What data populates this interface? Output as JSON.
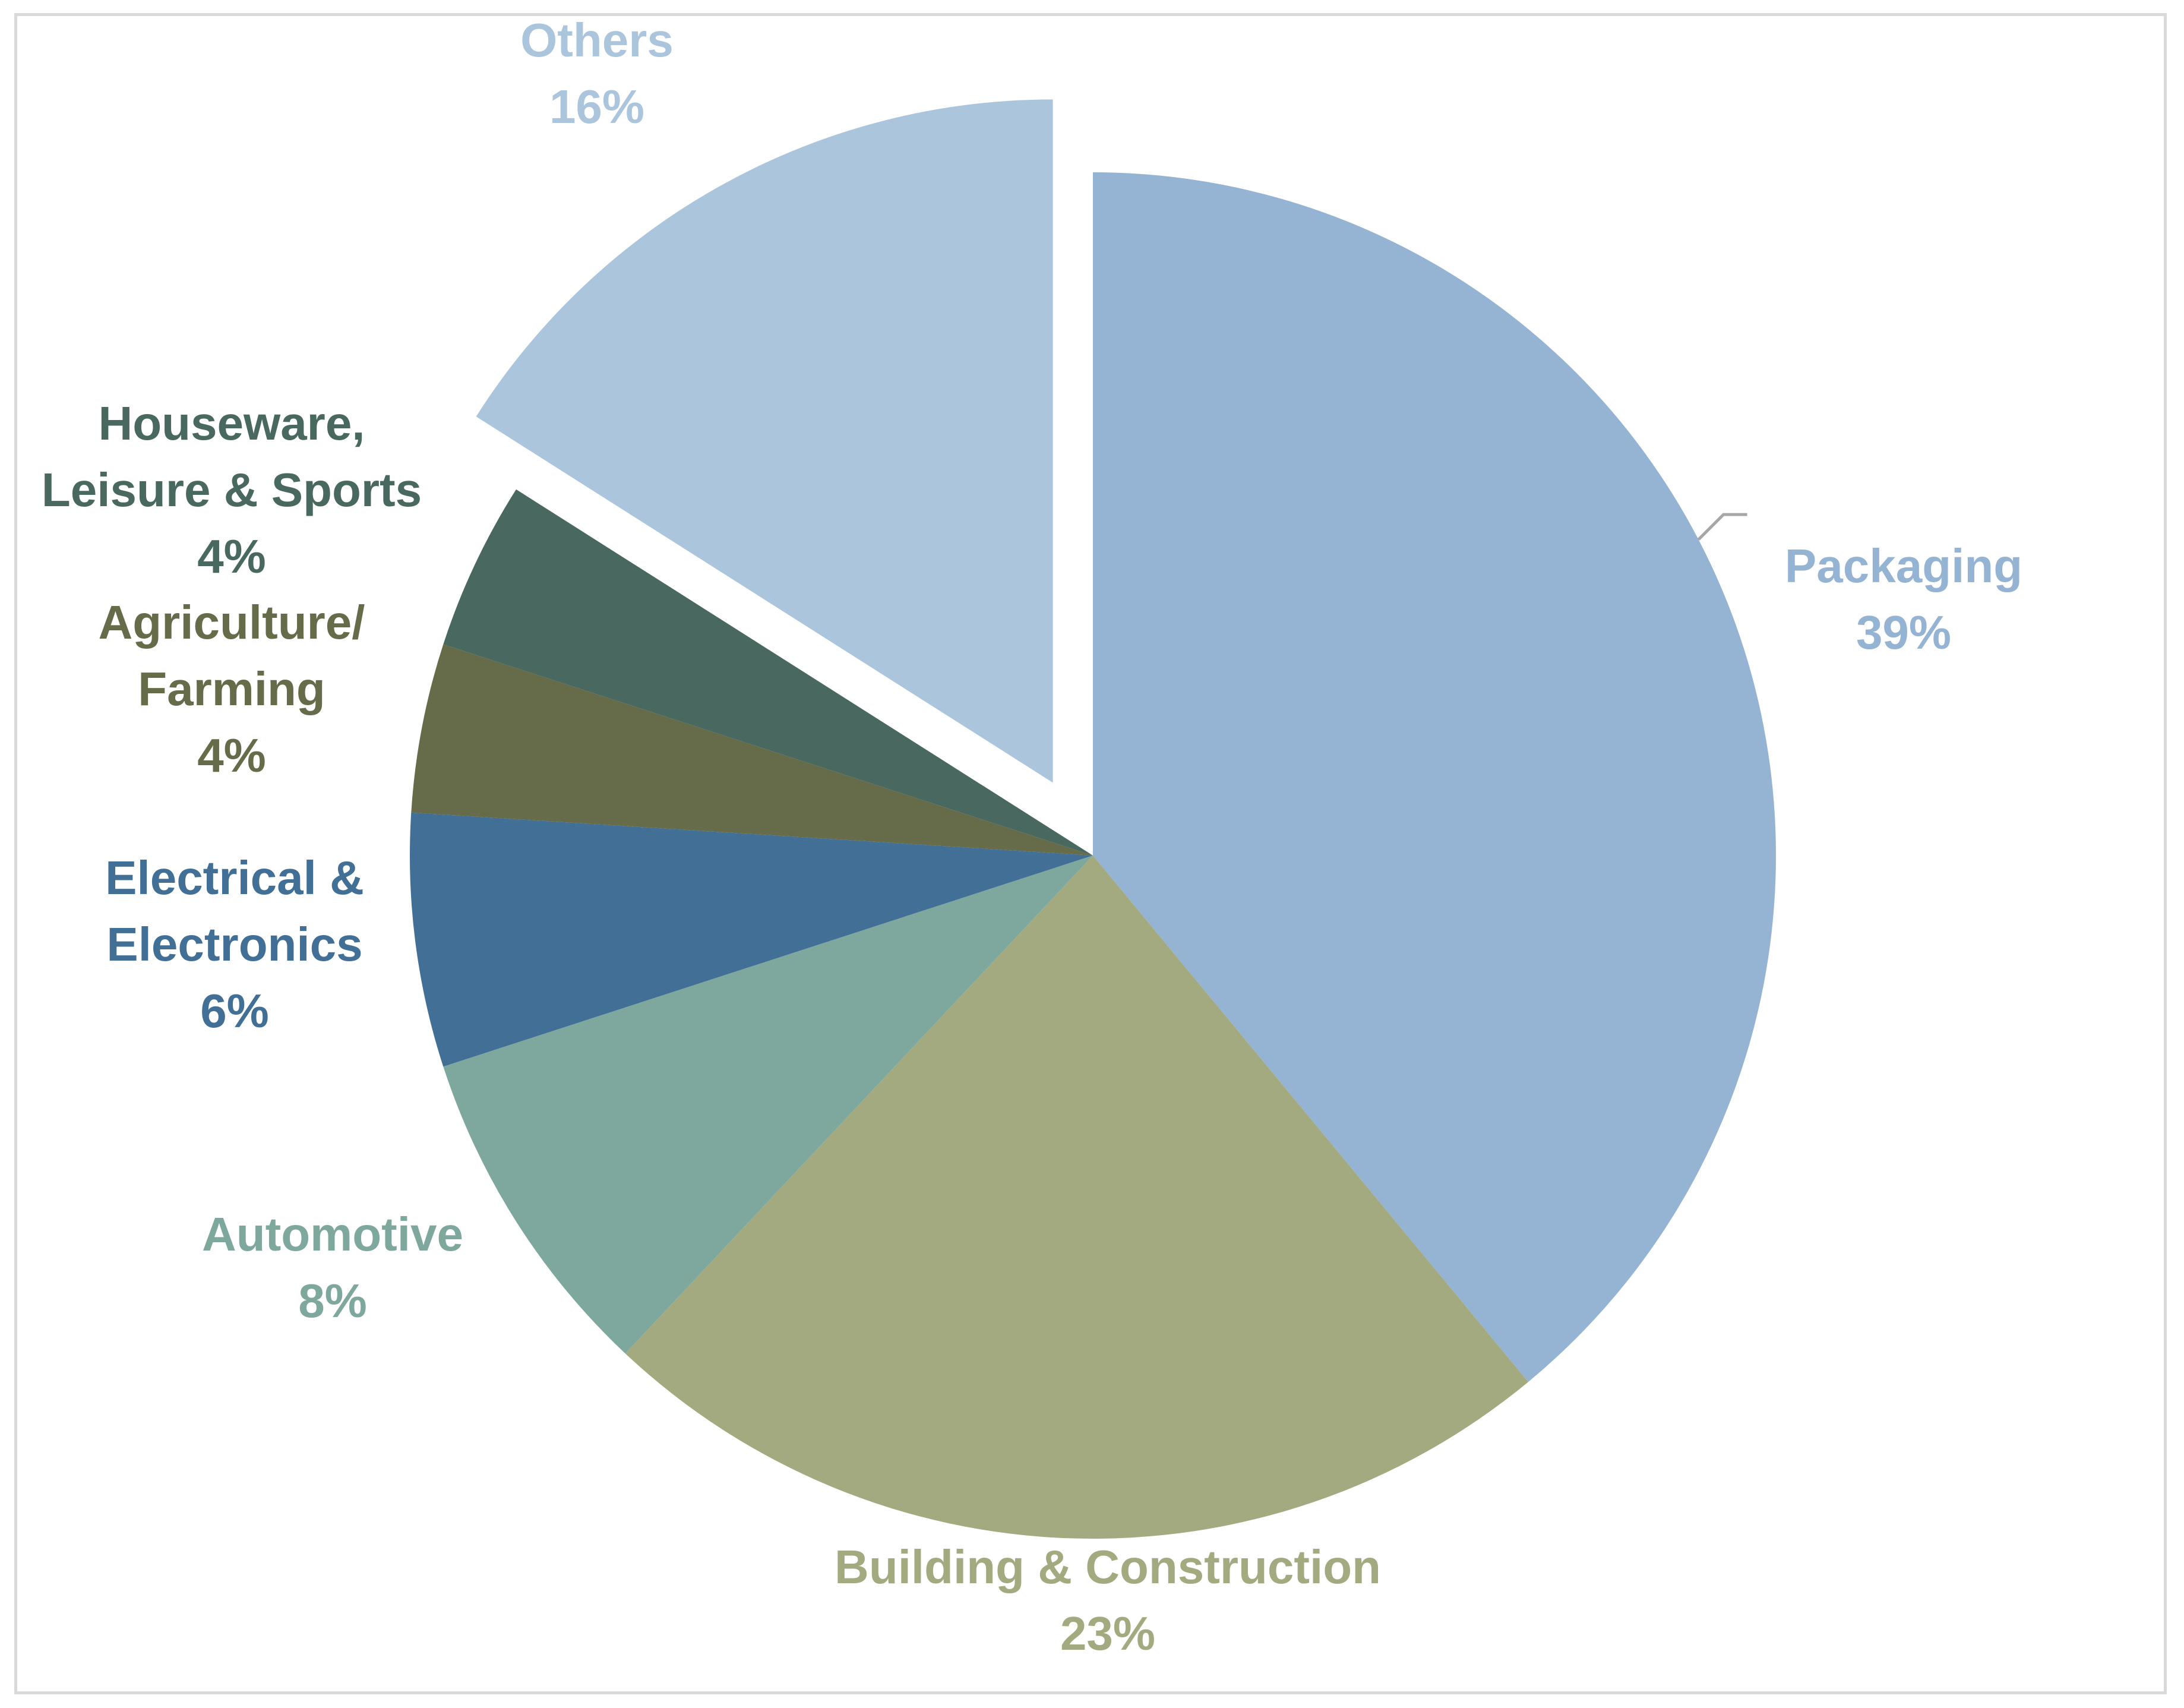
{
  "chart_data": {
    "type": "pie",
    "title": "",
    "slices": [
      {
        "name": "Packaging",
        "value": 39,
        "percent_label": "39%",
        "color": "#95b3d2",
        "label_lines": [
          "Packaging",
          "39%"
        ],
        "label_color": "#95b3d2",
        "exploded": false
      },
      {
        "name": "Building & Construction",
        "value": 23,
        "percent_label": "23%",
        "color": "#a3aa80",
        "label_lines": [
          "Building & Construction",
          "23%"
        ],
        "label_color": "#a3aa80",
        "exploded": false
      },
      {
        "name": "Automotive",
        "value": 8,
        "percent_label": "8%",
        "color": "#7ea79d",
        "label_lines": [
          "Automotive",
          "8%"
        ],
        "label_color": "#7ea79d",
        "exploded": false
      },
      {
        "name": "Electrical & Electronics",
        "value": 6,
        "percent_label": "6%",
        "color": "#416f96",
        "label_lines": [
          "Electrical &",
          "Electronics",
          "6%"
        ],
        "label_color": "#416f96",
        "exploded": false
      },
      {
        "name": "Agriculture/ Farming",
        "value": 4,
        "percent_label": "4%",
        "color": "#666b49",
        "label_lines": [
          "Agriculture/",
          "Farming",
          "4%"
        ],
        "label_color": "#666b49",
        "exploded": false
      },
      {
        "name": "Houseware, Leisure & Sports",
        "value": 4,
        "percent_label": "4%",
        "color": "#486860",
        "label_lines": [
          "Houseware,",
          "Leisure & Sports",
          "4%"
        ],
        "label_color": "#486860",
        "exploded": false
      },
      {
        "name": "Others",
        "value": 16,
        "percent_label": "16%",
        "color": "#abc5dc",
        "label_lines": [
          "Others",
          "16%"
        ],
        "label_color": "#abc5dc",
        "exploded": true
      }
    ],
    "start_angle": "12 o'clock",
    "direction": "clockwise",
    "legend": "none",
    "data_labels": "outside, category name and percentage",
    "leader_line_color": "#a6a6a6"
  }
}
